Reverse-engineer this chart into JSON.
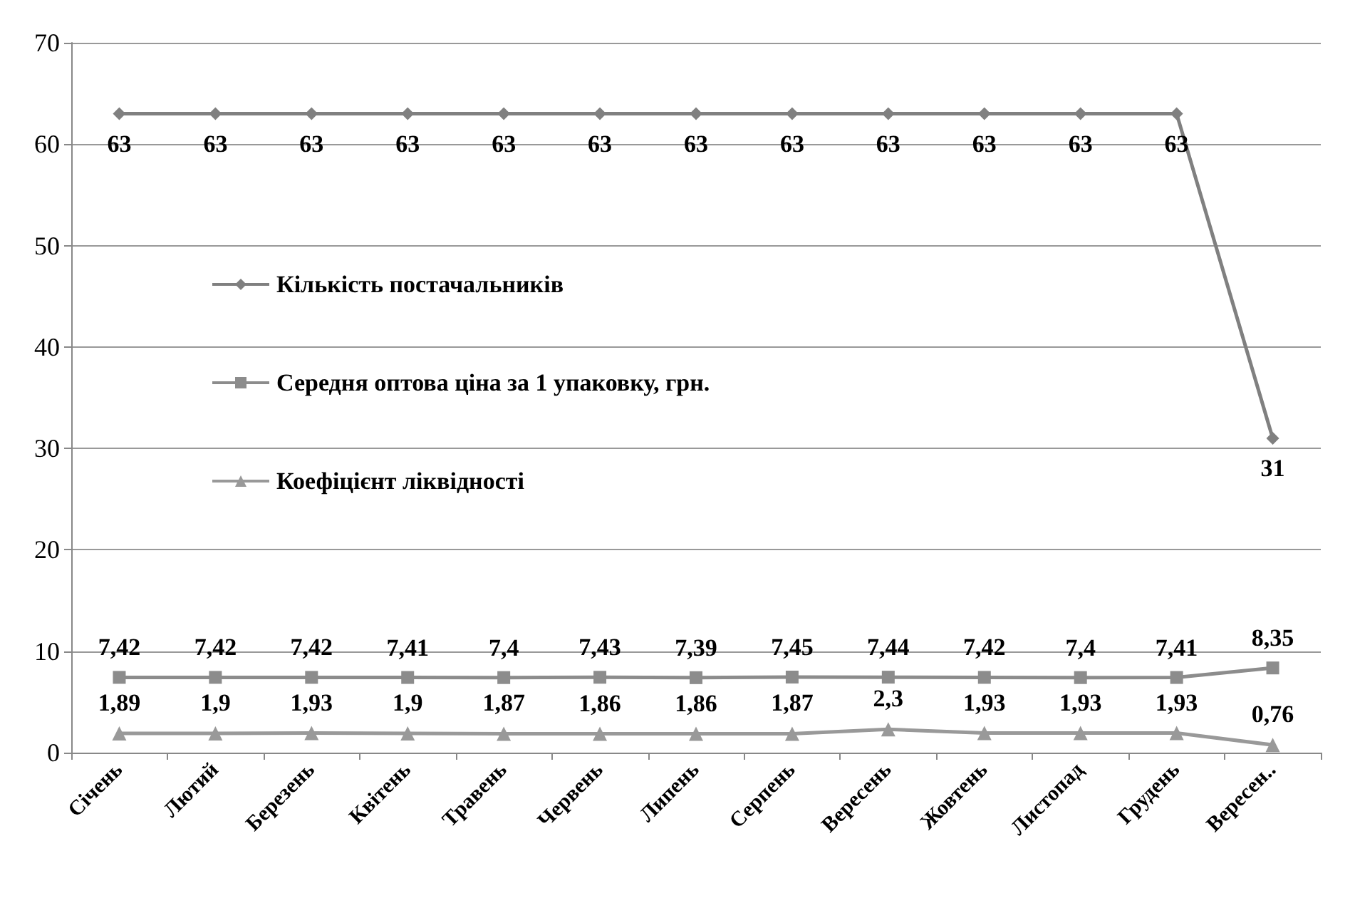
{
  "chart_data": {
    "type": "line",
    "categories": [
      "Січень",
      "Лютий",
      "Березень",
      "Квітень",
      "Травень",
      "Червень",
      "Липень",
      "Серпень",
      "Вересень",
      "Жовтень",
      "Листопад",
      "Грудень",
      "Вересен.."
    ],
    "series": [
      {
        "name": "Кількість постачальників",
        "color": "#808080",
        "marker": "diamond",
        "values": [
          63,
          63,
          63,
          63,
          63,
          63,
          63,
          63,
          63,
          63,
          63,
          63,
          31
        ],
        "value_labels": [
          "63",
          "63",
          "63",
          "63",
          "63",
          "63",
          "63",
          "63",
          "63",
          "63",
          "63",
          "63",
          "31"
        ]
      },
      {
        "name": "Середня оптова ціна за 1 упаковку, грн.",
        "color": "#8c8c8c",
        "marker": "square",
        "values": [
          7.42,
          7.42,
          7.42,
          7.41,
          7.4,
          7.43,
          7.39,
          7.45,
          7.44,
          7.42,
          7.4,
          7.41,
          8.35
        ],
        "value_labels": [
          "7,42",
          "7,42",
          "7,42",
          "7,41",
          "7,4",
          "7,43",
          "7,39",
          "7,45",
          "7,44",
          "7,42",
          "7,4",
          "7,41",
          "8,35"
        ]
      },
      {
        "name": "Коефіцієнт ліквідності",
        "color": "#999999",
        "marker": "triangle",
        "values": [
          1.89,
          1.9,
          1.93,
          1.9,
          1.87,
          1.86,
          1.86,
          1.87,
          2.3,
          1.93,
          1.93,
          1.93,
          0.76
        ],
        "value_labels": [
          "1,89",
          "1,9",
          "1,93",
          "1,9",
          "1,87",
          "1,86",
          "1,86",
          "1,87",
          "2,3",
          "1,93",
          "1,93",
          "1,93",
          "0,76"
        ]
      }
    ],
    "ylim": [
      0,
      70
    ],
    "yticks": [
      0,
      10,
      20,
      30,
      40,
      50,
      60,
      70
    ],
    "grid": "y",
    "legend": "left"
  }
}
